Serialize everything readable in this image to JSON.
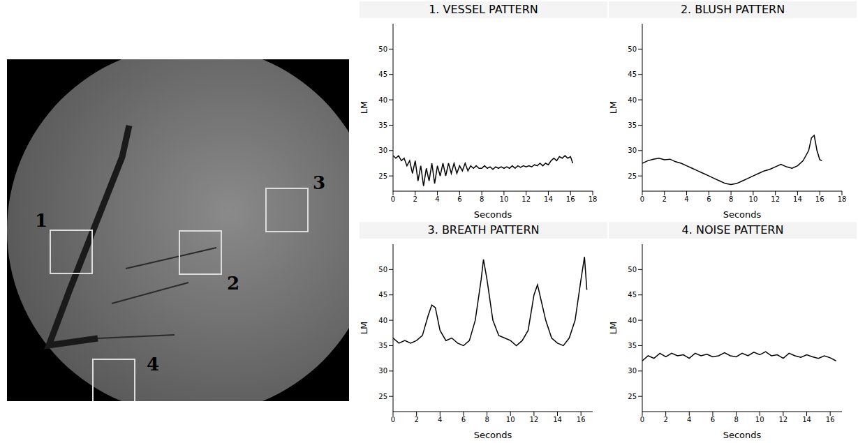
{
  "image": {
    "region_labels": [
      "1",
      "2",
      "3",
      "4"
    ]
  },
  "chart_data": [
    {
      "type": "line",
      "title": "1. VESSEL PATTERN",
      "x_label": "Seconds",
      "y_label": "LM",
      "color": "#000000",
      "x": [
        0,
        0.25,
        0.5,
        0.75,
        1,
        1.25,
        1.5,
        1.75,
        2,
        2.25,
        2.5,
        2.75,
        3,
        3.25,
        3.5,
        3.75,
        4,
        4.25,
        4.5,
        4.75,
        5,
        5.25,
        5.5,
        5.75,
        6,
        6.25,
        6.5,
        6.75,
        7,
        7.25,
        7.5,
        7.75,
        8,
        8.25,
        8.5,
        8.75,
        9,
        9.25,
        9.5,
        9.75,
        10,
        10.25,
        10.5,
        10.75,
        11,
        11.25,
        11.5,
        11.75,
        12,
        12.25,
        12.5,
        12.75,
        13,
        13.25,
        13.5,
        13.75,
        14,
        14.25,
        14.5,
        14.75,
        15,
        15.25,
        15.5,
        15.75,
        16,
        16.2
      ],
      "values": [
        29,
        28.5,
        29,
        28,
        28.5,
        27,
        28,
        25.5,
        28,
        24,
        27,
        23,
        26.5,
        24,
        27.5,
        23.5,
        27,
        25,
        27.5,
        25,
        27.5,
        25.5,
        27.5,
        25.5,
        27,
        26,
        27.5,
        26,
        27,
        26.5,
        27,
        26.5,
        26.5,
        27,
        26.5,
        26.8,
        26.3,
        26.8,
        26.5,
        26.8,
        26.5,
        26.8,
        26.5,
        27,
        26.5,
        27,
        26.7,
        27,
        26.8,
        27,
        26.8,
        27.2,
        27,
        27.5,
        27,
        27.5,
        27.2,
        28,
        28.5,
        28,
        28.8,
        28.5,
        29,
        28.5,
        28.8,
        27.5
      ],
      "xlim": [
        0,
        18
      ],
      "xticks": [
        0,
        2,
        4,
        6,
        8,
        10,
        12,
        14,
        16,
        18
      ],
      "ylim": [
        22,
        55
      ],
      "yticks": [
        25,
        30,
        35,
        40,
        45,
        50
      ]
    },
    {
      "type": "line",
      "title": "2. BLUSH PATTERN",
      "x_label": "Seconds",
      "y_label": "LM",
      "color": "#000000",
      "x": [
        0,
        0.5,
        1,
        1.5,
        2,
        2.5,
        3,
        3.5,
        4,
        4.5,
        5,
        5.5,
        6,
        6.5,
        7,
        7.5,
        8,
        8.5,
        9,
        9.5,
        10,
        10.5,
        11,
        11.5,
        12,
        12.5,
        13,
        13.5,
        14,
        14.5,
        15,
        15.25,
        15.5,
        15.75,
        16,
        16.2
      ],
      "values": [
        27.5,
        28,
        28.3,
        28.5,
        28.2,
        28.3,
        27.8,
        27.5,
        27,
        26.5,
        26,
        25.5,
        25,
        24.5,
        24,
        23.5,
        23.3,
        23.5,
        24,
        24.5,
        25,
        25.5,
        26,
        26.3,
        26.8,
        27.3,
        26.8,
        26.5,
        27,
        28,
        30,
        32.5,
        33,
        30,
        28.2,
        28
      ],
      "xlim": [
        0,
        18
      ],
      "xticks": [
        0,
        2,
        4,
        6,
        8,
        10,
        12,
        14,
        16,
        18
      ],
      "ylim": [
        22,
        55
      ],
      "yticks": [
        25,
        30,
        35,
        40,
        45,
        50
      ]
    },
    {
      "type": "line",
      "title": "3. BREATH PATTERN",
      "x_label": "Seconds",
      "y_label": "LM",
      "color": "#000000",
      "x": [
        0,
        0.5,
        1,
        1.5,
        2,
        2.5,
        3,
        3.3,
        3.6,
        4,
        4.5,
        5,
        5.5,
        6,
        6.5,
        7,
        7.5,
        7.7,
        8,
        8.5,
        9,
        9.5,
        10,
        10.5,
        11,
        11.5,
        12,
        12.3,
        12.6,
        13,
        13.5,
        14,
        14.5,
        15,
        15.5,
        16,
        16.3,
        16.5
      ],
      "values": [
        36.5,
        35.5,
        36,
        35.5,
        36,
        37,
        41,
        43,
        42.5,
        38,
        36,
        36.5,
        35.5,
        35,
        36,
        40,
        48,
        52,
        48,
        40,
        37,
        36.5,
        36,
        35,
        36,
        38,
        45,
        47,
        44,
        40,
        36.5,
        35.5,
        35,
        36.5,
        40,
        48,
        52.5,
        46
      ],
      "xlim": [
        0,
        17
      ],
      "xticks": [
        0,
        2,
        4,
        6,
        8,
        10,
        12,
        14,
        16
      ],
      "ylim": [
        22,
        55
      ],
      "yticks": [
        25,
        30,
        35,
        40,
        45,
        50
      ]
    },
    {
      "type": "line",
      "title": "4. NOISE PATTERN",
      "x_label": "Seconds",
      "y_label": "LM",
      "color": "#000000",
      "x": [
        0,
        0.5,
        1,
        1.5,
        2,
        2.5,
        3,
        3.5,
        4,
        4.5,
        5,
        5.5,
        6,
        6.5,
        7,
        7.5,
        8,
        8.5,
        9,
        9.5,
        10,
        10.5,
        11,
        11.5,
        12,
        12.5,
        13,
        13.5,
        14,
        14.5,
        15,
        15.5,
        16,
        16.5
      ],
      "values": [
        32,
        33,
        32.5,
        33.5,
        32.8,
        33.5,
        33,
        33.2,
        32.5,
        33.5,
        33,
        33.3,
        32.8,
        33,
        33.6,
        33,
        32.8,
        33.5,
        33,
        33.7,
        33.2,
        33.8,
        33,
        33.2,
        32.5,
        33.5,
        33,
        32.7,
        33.2,
        32.8,
        32.5,
        33,
        32.6,
        32
      ],
      "xlim": [
        0,
        17
      ],
      "xticks": [
        0,
        2,
        4,
        6,
        8,
        10,
        12,
        14,
        16
      ],
      "ylim": [
        22,
        55
      ],
      "yticks": [
        25,
        30,
        35,
        40,
        45,
        50
      ]
    }
  ]
}
